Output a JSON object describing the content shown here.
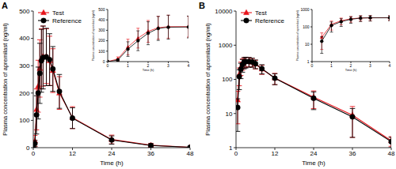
{
  "chart_data": [
    {
      "type": "line",
      "title": "A",
      "x_label": "Time (h)",
      "y_label": "Plasma concentration of apremilast (ng/ml)",
      "x": [
        0,
        0.5,
        1,
        1.5,
        2,
        2.5,
        3,
        4,
        5,
        6,
        8,
        12,
        24,
        36,
        48
      ],
      "xlim": [
        0,
        48
      ],
      "xticks": [
        0,
        12,
        24,
        36,
        48
      ],
      "ylim": [
        0,
        500
      ],
      "yticks": [
        0,
        100,
        200,
        300,
        400,
        500
      ],
      "legend": "upper left",
      "series": [
        {
          "name": "Test",
          "color": "#e8141b",
          "marker": "triangle",
          "values": [
            0,
            25,
            140,
            225,
            290,
            325,
            335,
            335,
            318,
            282,
            200,
            110,
            30,
            9,
            1.6
          ],
          "errors": [
            0,
            20,
            75,
            95,
            105,
            110,
            110,
            100,
            90,
            80,
            60,
            40,
            16,
            7,
            0.5
          ]
        },
        {
          "name": "Reference",
          "color": "#000000",
          "marker": "circle",
          "values": [
            0,
            15,
            120,
            200,
            272,
            318,
            330,
            332,
            322,
            288,
            206,
            108,
            28,
            8,
            1.5
          ],
          "errors": [
            0,
            12,
            70,
            95,
            110,
            115,
            115,
            105,
            95,
            82,
            62,
            38,
            15,
            6,
            0.5
          ]
        }
      ]
    },
    {
      "type": "line",
      "x_label": "Time (h)",
      "y_label": "Plasma concentration of apremilast (ng/ml)",
      "x": [
        0,
        0.5,
        1,
        1.5,
        2,
        2.5,
        3,
        4
      ],
      "xlim": [
        0,
        4
      ],
      "xticks": [
        0,
        1,
        2,
        3,
        4
      ],
      "ylim": [
        0,
        500
      ],
      "yticks": [
        0,
        100,
        200,
        300,
        400,
        500
      ],
      "series": [
        {
          "name": "Test",
          "color": "#e8141b",
          "marker": "triangle",
          "values": [
            0,
            25,
            140,
            225,
            290,
            325,
            335,
            335
          ],
          "errors": [
            0,
            20,
            75,
            95,
            105,
            110,
            110,
            100
          ]
        },
        {
          "name": "Reference",
          "color": "#000000",
          "marker": "circle",
          "values": [
            0,
            15,
            120,
            200,
            272,
            318,
            330,
            332
          ],
          "errors": [
            0,
            12,
            70,
            95,
            110,
            115,
            115,
            105
          ]
        }
      ]
    },
    {
      "type": "line",
      "title": "B",
      "x_label": "Time (h)",
      "y_label": "Plasma concentration of apremilast (ng/ml)",
      "x": [
        0.5,
        1,
        1.5,
        2,
        2.5,
        3,
        4,
        5,
        6,
        8,
        12,
        24,
        36,
        48
      ],
      "xlim": [
        0,
        48
      ],
      "xticks": [
        0,
        12,
        24,
        36,
        48
      ],
      "ylim": [
        1,
        10000
      ],
      "yticks": [
        1,
        10,
        100,
        1000,
        10000
      ],
      "log": "y",
      "legend": "upper left",
      "series": [
        {
          "name": "Test",
          "color": "#e8141b",
          "marker": "triangle",
          "values": [
            25,
            140,
            225,
            290,
            325,
            335,
            335,
            318,
            282,
            200,
            110,
            30,
            9,
            1.6
          ],
          "errors": [
            20,
            75,
            95,
            105,
            110,
            110,
            100,
            90,
            80,
            60,
            40,
            16,
            7,
            0.5
          ]
        },
        {
          "name": "Reference",
          "color": "#000000",
          "marker": "circle",
          "values": [
            15,
            120,
            200,
            272,
            318,
            330,
            332,
            322,
            288,
            206,
            108,
            28,
            8,
            1.5
          ],
          "errors": [
            12,
            70,
            95,
            110,
            115,
            115,
            105,
            95,
            82,
            62,
            38,
            15,
            6,
            0.5
          ]
        }
      ]
    },
    {
      "type": "line",
      "x_label": "Time (h)",
      "y_label": "Plasma concentration of apremilast (ng/ml)",
      "x": [
        0.5,
        1,
        1.5,
        2,
        2.5,
        3,
        4
      ],
      "xlim": [
        0,
        4
      ],
      "xticks": [
        0,
        1,
        2,
        3,
        4
      ],
      "ylim": [
        1,
        1000
      ],
      "yticks": [
        1,
        10,
        100,
        1000
      ],
      "log": "y",
      "series": [
        {
          "name": "Test",
          "color": "#e8141b",
          "marker": "triangle",
          "values": [
            25,
            140,
            225,
            290,
            325,
            335,
            335
          ],
          "errors": [
            20,
            75,
            95,
            105,
            110,
            110,
            100
          ]
        },
        {
          "name": "Reference",
          "color": "#000000",
          "marker": "circle",
          "values": [
            15,
            120,
            200,
            272,
            318,
            330,
            332
          ],
          "errors": [
            12,
            70,
            95,
            110,
            115,
            115,
            105
          ]
        }
      ]
    }
  ]
}
